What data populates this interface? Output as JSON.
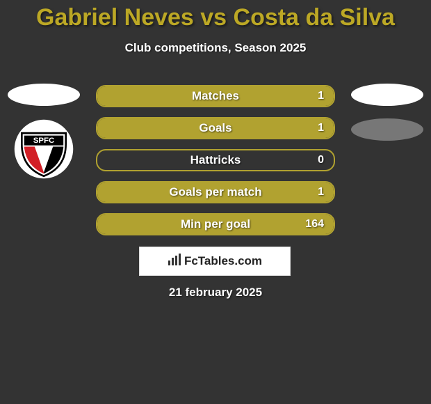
{
  "title_color": "#bca825",
  "title": "Gabriel Neves vs Costa da Silva",
  "subtitle": "Club competitions, Season 2025",
  "stats": [
    {
      "label": "Matches",
      "value": "1",
      "fill_pct": 100,
      "fill_color": "#b1a230",
      "border_color": "#b1a230"
    },
    {
      "label": "Goals",
      "value": "1",
      "fill_pct": 100,
      "fill_color": "#b1a230",
      "border_color": "#b1a230"
    },
    {
      "label": "Hattricks",
      "value": "0",
      "fill_pct": 0,
      "fill_color": "#b1a230",
      "border_color": "#b1a230"
    },
    {
      "label": "Goals per match",
      "value": "1",
      "fill_pct": 100,
      "fill_color": "#b1a230",
      "border_color": "#b1a230"
    },
    {
      "label": "Min per goal",
      "value": "164",
      "fill_pct": 100,
      "fill_color": "#b1a230",
      "border_color": "#b1a230"
    }
  ],
  "left": {
    "ovals": [
      {
        "color": "#ffffff"
      }
    ],
    "club_badge_text": "SPFC"
  },
  "right": {
    "ovals": [
      {
        "color": "#ffffff"
      },
      {
        "color": "#777777"
      }
    ]
  },
  "brand": "FcTables.com",
  "date": "21 february 2025"
}
